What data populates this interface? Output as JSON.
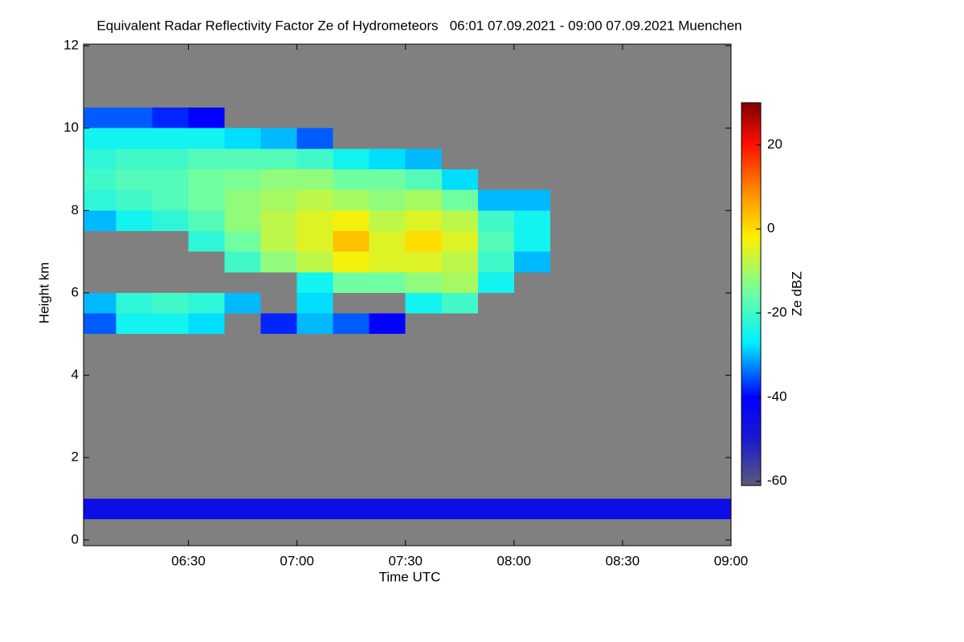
{
  "chart_data": {
    "type": "heatmap",
    "title": "Equivalent Radar Reflectivity Factor Ze of Hydrometeors   06:01 07.09.2021 - 09:00 07.09.2021 Muenchen",
    "x_label": "Time UTC",
    "y_label": "Height km",
    "colorbar_label": "Ze dBZ",
    "xlim": [
      361,
      540
    ],
    "ylim": [
      -0.14,
      12.04
    ],
    "zlim": [
      -61,
      30
    ],
    "xticks": [
      {
        "value": 390,
        "label": "06:30"
      },
      {
        "value": 420,
        "label": "07:00"
      },
      {
        "value": 450,
        "label": "07:30"
      },
      {
        "value": 480,
        "label": "08:00"
      },
      {
        "value": 510,
        "label": "08:30"
      },
      {
        "value": 540,
        "label": "09:00"
      }
    ],
    "yticks": [
      0,
      2,
      4,
      6,
      8,
      10,
      12
    ],
    "zticks": [
      -60,
      -40,
      -20,
      0,
      20
    ],
    "x_edges": [
      360,
      370,
      380,
      390,
      400,
      410,
      420,
      430,
      440,
      450,
      460,
      470,
      480,
      490,
      500,
      510,
      520,
      530,
      540
    ],
    "y_edges": [
      0,
      0.5,
      1,
      1.5,
      2,
      2.5,
      3,
      3.5,
      4,
      4.5,
      5,
      5.5,
      6,
      6.5,
      7,
      7.5,
      8,
      8.5,
      9,
      9.5,
      10,
      10.5,
      11,
      11.5,
      12
    ],
    "null_color": "#808080",
    "colorscale": [
      {
        "value": -61,
        "color": "#5a5a78"
      },
      {
        "value": -50,
        "color": "#1a1ad0"
      },
      {
        "value": -40,
        "color": "#0000ff"
      },
      {
        "value": -27,
        "color": "#00f0ff"
      },
      {
        "value": -15,
        "color": "#70ffa0"
      },
      {
        "value": -2,
        "color": "#fff000"
      },
      {
        "value": 10,
        "color": "#ff8000"
      },
      {
        "value": 20,
        "color": "#ff1000"
      },
      {
        "value": 30,
        "color": "#800000"
      }
    ],
    "z": [
      [
        null,
        null,
        null,
        null,
        null,
        null,
        null,
        null,
        null,
        null,
        null,
        null,
        null,
        null,
        null,
        null,
        null,
        null
      ],
      [
        -45,
        -45,
        -45,
        -45,
        -45,
        -45,
        -45,
        -45,
        -45,
        -45,
        -45,
        -45,
        -45,
        -45,
        -45,
        -45,
        -45,
        -45
      ],
      [
        null,
        null,
        null,
        null,
        null,
        null,
        null,
        null,
        null,
        null,
        null,
        null,
        null,
        null,
        null,
        null,
        null,
        null
      ],
      [
        null,
        null,
        null,
        null,
        null,
        null,
        null,
        null,
        null,
        null,
        null,
        null,
        null,
        null,
        null,
        null,
        null,
        null
      ],
      [
        null,
        null,
        null,
        null,
        null,
        null,
        null,
        null,
        null,
        null,
        null,
        null,
        null,
        null,
        null,
        null,
        null,
        null
      ],
      [
        null,
        null,
        null,
        null,
        null,
        null,
        null,
        null,
        null,
        null,
        null,
        null,
        null,
        null,
        null,
        null,
        null,
        null
      ],
      [
        null,
        null,
        null,
        null,
        null,
        null,
        null,
        null,
        null,
        null,
        null,
        null,
        null,
        null,
        null,
        null,
        null,
        null
      ],
      [
        null,
        null,
        null,
        null,
        null,
        null,
        null,
        null,
        null,
        null,
        null,
        null,
        null,
        null,
        null,
        null,
        null,
        null
      ],
      [
        null,
        null,
        null,
        null,
        null,
        null,
        null,
        null,
        null,
        null,
        null,
        null,
        null,
        null,
        null,
        null,
        null,
        null
      ],
      [
        null,
        null,
        null,
        null,
        null,
        null,
        null,
        null,
        null,
        null,
        null,
        null,
        null,
        null,
        null,
        null,
        null,
        null
      ],
      [
        -35,
        -25,
        -25,
        -28,
        null,
        -38,
        -30,
        -35,
        -40,
        null,
        null,
        null,
        null,
        null,
        null,
        null,
        null,
        null
      ],
      [
        -30,
        -22,
        -20,
        -22,
        -30,
        null,
        -28,
        null,
        null,
        -25,
        -20,
        null,
        null,
        null,
        null,
        null,
        null,
        null
      ],
      [
        null,
        null,
        null,
        null,
        null,
        null,
        -25,
        -15,
        -15,
        -12,
        -10,
        -25,
        null,
        null,
        null,
        null,
        null,
        null
      ],
      [
        null,
        null,
        null,
        null,
        -20,
        -12,
        -8,
        -3,
        -5,
        -5,
        -8,
        -20,
        -30,
        null,
        null,
        null,
        null,
        null
      ],
      [
        null,
        null,
        null,
        -22,
        -15,
        -8,
        -5,
        3,
        -5,
        0,
        -5,
        -18,
        -25,
        null,
        null,
        null,
        null,
        null
      ],
      [
        -30,
        -25,
        -22,
        -18,
        -12,
        -8,
        -5,
        -3,
        -8,
        -5,
        -8,
        -20,
        -25,
        null,
        null,
        null,
        null,
        null
      ],
      [
        -22,
        -20,
        -18,
        -15,
        -12,
        -10,
        -8,
        -10,
        -12,
        -10,
        -15,
        -30,
        -30,
        null,
        null,
        null,
        null,
        null
      ],
      [
        -20,
        -18,
        -18,
        -15,
        -14,
        -12,
        -12,
        -15,
        -15,
        -18,
        -28,
        null,
        null,
        null,
        null,
        null,
        null,
        null
      ],
      [
        -22,
        -20,
        -20,
        -18,
        -18,
        -18,
        -20,
        -25,
        -28,
        -30,
        null,
        null,
        null,
        null,
        null,
        null,
        null,
        null
      ],
      [
        -25,
        -25,
        -25,
        -25,
        -28,
        -30,
        -35,
        null,
        null,
        null,
        null,
        null,
        null,
        null,
        null,
        null,
        null,
        null
      ],
      [
        -35,
        -35,
        -38,
        -40,
        null,
        null,
        null,
        null,
        null,
        null,
        null,
        null,
        null,
        null,
        null,
        null,
        null,
        null
      ],
      [
        null,
        null,
        null,
        null,
        null,
        null,
        null,
        null,
        null,
        null,
        null,
        null,
        null,
        null,
        null,
        null,
        null,
        null
      ],
      [
        null,
        null,
        null,
        null,
        null,
        null,
        null,
        null,
        null,
        null,
        null,
        null,
        null,
        null,
        null,
        null,
        null,
        null
      ],
      [
        null,
        null,
        null,
        null,
        null,
        null,
        null,
        null,
        null,
        null,
        null,
        null,
        null,
        null,
        null,
        null,
        null,
        null
      ]
    ]
  }
}
